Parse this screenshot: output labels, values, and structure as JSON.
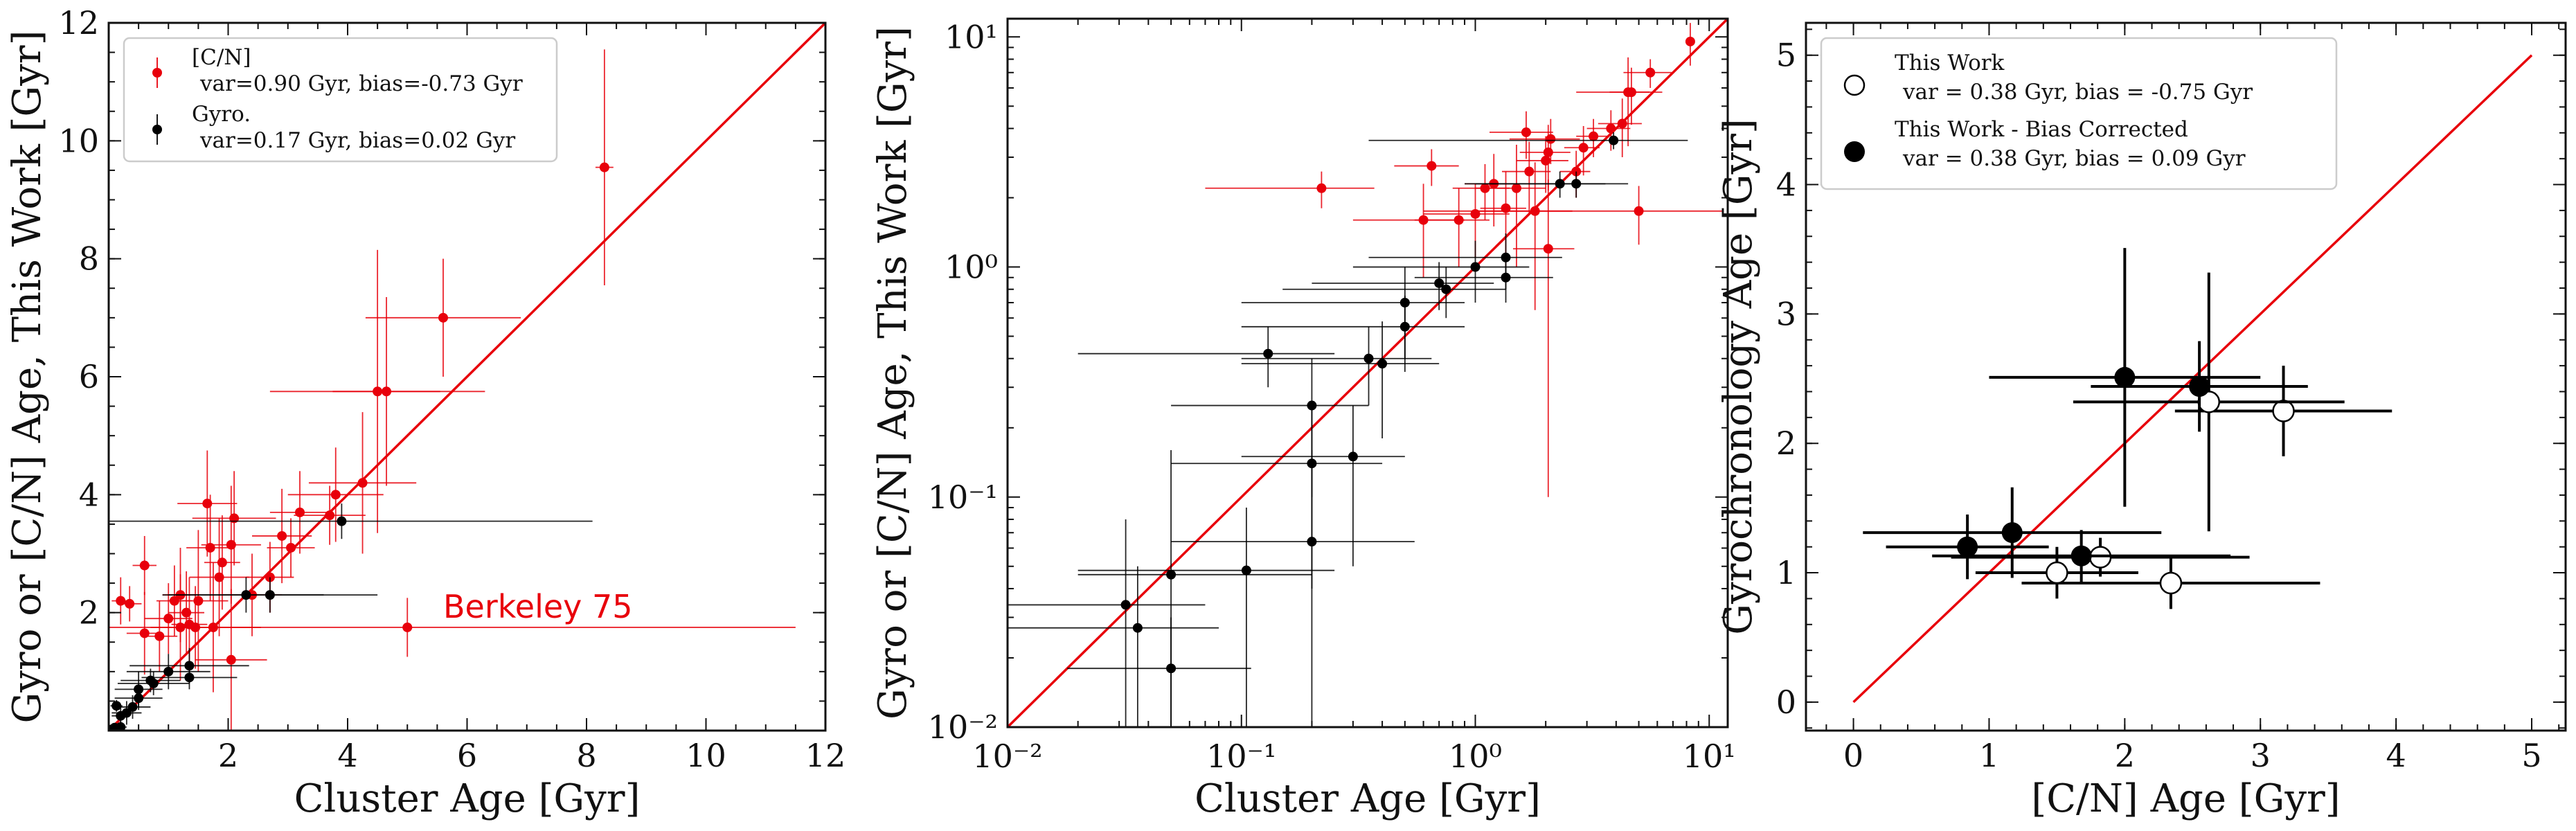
{
  "chart_data": [
    {
      "type": "scatter",
      "scale": "linear",
      "xlabel": "Cluster Age [Gyr]",
      "ylabel": "Gyro or [C/N] Age, This Work [Gyr]",
      "xlim": [
        0,
        12
      ],
      "ylim": [
        0,
        12
      ],
      "xticks": [
        "2",
        "4",
        "6",
        "8",
        "10",
        "12"
      ],
      "yticks": [
        "2",
        "4",
        "6",
        "8",
        "10",
        "12"
      ],
      "legend": {
        "position": "top-left",
        "entries": [
          {
            "label_line1": "[C/N]",
            "label_line2": "var=0.90 Gyr, bias=-0.73 Gyr"
          },
          {
            "label_line1": "Gyro.",
            "label_line2": "var=0.17 Gyr, bias=0.02 Gyr"
          }
        ]
      },
      "annotation": {
        "text": "Berkeley 75",
        "x": 5.6,
        "y": 2.1
      },
      "one_to_one_line": true,
      "series": [
        {
          "name": "[C/N]",
          "color": "#e8000b",
          "points": [
            {
              "x": 8.3,
              "y": 9.55,
              "xerr": 0.15,
              "yerr": 2.0
            },
            {
              "x": 5.6,
              "y": 7.0,
              "xerr": 1.3,
              "yerr": 1.0
            },
            {
              "x": 4.5,
              "y": 5.75,
              "xerr": 1.8,
              "yerr": 2.4
            },
            {
              "x": 4.65,
              "y": 5.75,
              "xerr": 0.9,
              "yerr": 1.6
            },
            {
              "x": 4.25,
              "y": 4.2,
              "xerr": 0.9,
              "yerr": 1.2
            },
            {
              "x": 3.8,
              "y": 4.0,
              "xerr": 0.8,
              "yerr": 0.8
            },
            {
              "x": 3.7,
              "y": 3.65,
              "xerr": 0.6,
              "yerr": 0.5
            },
            {
              "x": 3.2,
              "y": 3.7,
              "xerr": 0.5,
              "yerr": 0.7
            },
            {
              "x": 2.9,
              "y": 3.3,
              "xerr": 0.5,
              "yerr": 0.8
            },
            {
              "x": 3.05,
              "y": 3.1,
              "xerr": 0.4,
              "yerr": 0.5
            },
            {
              "x": 2.7,
              "y": 2.6,
              "xerr": 0.4,
              "yerr": 0.6
            },
            {
              "x": 2.4,
              "y": 2.3,
              "xerr": 0.5,
              "yerr": 0.7
            },
            {
              "x": 2.05,
              "y": 3.15,
              "xerr": 0.5,
              "yerr": 1.0
            },
            {
              "x": 2.1,
              "y": 3.6,
              "xerr": 0.7,
              "yerr": 0.8
            },
            {
              "x": 1.65,
              "y": 3.85,
              "xerr": 0.5,
              "yerr": 0.9
            },
            {
              "x": 1.7,
              "y": 3.1,
              "xerr": 0.4,
              "yerr": 0.9
            },
            {
              "x": 1.85,
              "y": 2.6,
              "xerr": 0.5,
              "yerr": 1.0
            },
            {
              "x": 1.9,
              "y": 2.85,
              "xerr": 0.3,
              "yerr": 0.8
            },
            {
              "x": 1.5,
              "y": 2.2,
              "xerr": 0.5,
              "yerr": 1.2
            },
            {
              "x": 1.3,
              "y": 2.0,
              "xerr": 0.3,
              "yerr": 0.7
            },
            {
              "x": 1.2,
              "y": 2.3,
              "xerr": 0.3,
              "yerr": 0.8
            },
            {
              "x": 1.1,
              "y": 2.2,
              "xerr": 0.3,
              "yerr": 0.6
            },
            {
              "x": 1.0,
              "y": 1.9,
              "xerr": 0.4,
              "yerr": 0.6
            },
            {
              "x": 1.35,
              "y": 1.8,
              "xerr": 0.3,
              "yerr": 0.8
            },
            {
              "x": 1.45,
              "y": 1.75,
              "xerr": 0.4,
              "yerr": 0.7
            },
            {
              "x": 1.2,
              "y": 1.75,
              "xerr": 0.5,
              "yerr": 0.9
            },
            {
              "x": 0.6,
              "y": 1.65,
              "xerr": 0.3,
              "yerr": 0.7
            },
            {
              "x": 0.85,
              "y": 1.6,
              "xerr": 0.3,
              "yerr": 0.6
            },
            {
              "x": 0.6,
              "y": 2.8,
              "xerr": 0.2,
              "yerr": 0.5
            },
            {
              "x": 0.2,
              "y": 2.2,
              "xerr": 0.15,
              "yerr": 0.4
            },
            {
              "x": 0.35,
              "y": 2.15,
              "xerr": 0.2,
              "yerr": 0.3
            },
            {
              "x": 1.75,
              "y": 1.75,
              "xerr": 0.8,
              "yerr": 1.1
            },
            {
              "x": 2.05,
              "y": 1.2,
              "xerr": 0.6,
              "yerr": 1.2
            },
            {
              "x": 5.0,
              "y": 1.75,
              "xerr": 6.5,
              "yerr": 0.5
            }
          ]
        },
        {
          "name": "Gyro.",
          "color": "#000000",
          "points": [
            {
              "x": 3.9,
              "y": 3.55,
              "xerr": 4.2,
              "yerr": 0.3
            },
            {
              "x": 2.7,
              "y": 2.3,
              "xerr": 1.8,
              "yerr": 0.3
            },
            {
              "x": 2.3,
              "y": 2.3,
              "xerr": 1.3,
              "yerr": 0.3
            },
            {
              "x": 1.35,
              "y": 1.1,
              "xerr": 1.0,
              "yerr": 0.3
            },
            {
              "x": 1.35,
              "y": 0.9,
              "xerr": 0.8,
              "yerr": 0.2
            },
            {
              "x": 1.0,
              "y": 1.0,
              "xerr": 0.7,
              "yerr": 0.3
            },
            {
              "x": 0.75,
              "y": 0.8,
              "xerr": 0.6,
              "yerr": 0.2
            },
            {
              "x": 0.7,
              "y": 0.85,
              "xerr": 0.5,
              "yerr": 0.2
            },
            {
              "x": 0.5,
              "y": 0.55,
              "xerr": 0.4,
              "yerr": 0.2
            },
            {
              "x": 0.5,
              "y": 0.7,
              "xerr": 0.4,
              "yerr": 0.3
            },
            {
              "x": 0.4,
              "y": 0.4,
              "xerr": 0.3,
              "yerr": 0.2
            },
            {
              "x": 0.3,
              "y": 0.3,
              "xerr": 0.25,
              "yerr": 0.2
            },
            {
              "x": 0.2,
              "y": 0.25,
              "xerr": 0.15,
              "yerr": 0.15
            },
            {
              "x": 0.2,
              "y": 0.06,
              "xerr": 0.1,
              "yerr": 0.1
            },
            {
              "x": 0.13,
              "y": 0.42,
              "xerr": 0.1,
              "yerr": 0.1
            },
            {
              "x": 0.1,
              "y": 0.05,
              "xerr": 0.06,
              "yerr": 0.05
            },
            {
              "x": 0.05,
              "y": 0.02,
              "xerr": 0.03,
              "yerr": 0.02
            }
          ]
        }
      ]
    },
    {
      "type": "scatter",
      "scale": "log",
      "xlabel": "Cluster Age [Gyr]",
      "ylabel": "Gyro or [C/N] Age, This Work [Gyr]",
      "xlim": [
        0.01,
        12
      ],
      "ylim": [
        0.01,
        12
      ],
      "xticks": [
        "10⁻²",
        "10⁻¹",
        "10⁰",
        "10¹"
      ],
      "yticks": [
        "10⁻²",
        "10⁻¹",
        "10⁰",
        "10¹"
      ],
      "one_to_one_line": true,
      "series": [
        {
          "name": "[C/N]",
          "color": "#e8000b",
          "points": [
            {
              "x": 8.3,
              "y": 9.55,
              "xlo": 8.0,
              "xhi": 8.6,
              "ylo": 7.5,
              "yhi": 11.5
            },
            {
              "x": 5.6,
              "y": 7.0,
              "xlo": 4.3,
              "xhi": 6.9,
              "ylo": 6.0,
              "yhi": 8.0
            },
            {
              "x": 4.5,
              "y": 5.75,
              "xlo": 2.7,
              "xhi": 6.3,
              "ylo": 3.35,
              "yhi": 8.15
            },
            {
              "x": 4.65,
              "y": 5.75,
              "xlo": 3.75,
              "xhi": 5.55,
              "ylo": 4.15,
              "yhi": 7.35
            },
            {
              "x": 4.25,
              "y": 4.2,
              "xlo": 3.35,
              "xhi": 5.15,
              "ylo": 3.0,
              "yhi": 5.4
            },
            {
              "x": 3.8,
              "y": 4.0,
              "xlo": 3.0,
              "xhi": 4.6,
              "ylo": 3.2,
              "yhi": 4.8
            },
            {
              "x": 3.2,
              "y": 3.7,
              "xlo": 2.7,
              "xhi": 3.7,
              "ylo": 3.0,
              "yhi": 4.4
            },
            {
              "x": 2.9,
              "y": 3.3,
              "xlo": 2.4,
              "xhi": 3.4,
              "ylo": 2.5,
              "yhi": 4.1
            },
            {
              "x": 2.7,
              "y": 2.6,
              "xlo": 2.3,
              "xhi": 3.1,
              "ylo": 2.0,
              "yhi": 3.2
            },
            {
              "x": 2.1,
              "y": 3.6,
              "xlo": 1.4,
              "xhi": 2.8,
              "ylo": 2.8,
              "yhi": 4.4
            },
            {
              "x": 1.65,
              "y": 3.85,
              "xlo": 1.15,
              "xhi": 2.15,
              "ylo": 2.95,
              "yhi": 4.75
            },
            {
              "x": 2.05,
              "y": 3.15,
              "xlo": 1.55,
              "xhi": 2.55,
              "ylo": 2.15,
              "yhi": 4.15
            },
            {
              "x": 2.0,
              "y": 2.9,
              "xlo": 1.5,
              "xhi": 2.5,
              "ylo": 2.1,
              "yhi": 3.7
            },
            {
              "x": 1.7,
              "y": 2.6,
              "xlo": 1.3,
              "xhi": 2.1,
              "ylo": 1.7,
              "yhi": 3.5
            },
            {
              "x": 1.5,
              "y": 2.2,
              "xlo": 1.0,
              "xhi": 2.0,
              "ylo": 1.0,
              "yhi": 3.4
            },
            {
              "x": 1.2,
              "y": 2.3,
              "xlo": 0.9,
              "xhi": 1.5,
              "ylo": 1.5,
              "yhi": 3.1
            },
            {
              "x": 1.1,
              "y": 2.2,
              "xlo": 0.8,
              "xhi": 1.4,
              "ylo": 1.6,
              "yhi": 2.8
            },
            {
              "x": 1.0,
              "y": 1.7,
              "xlo": 0.6,
              "xhi": 1.4,
              "ylo": 1.1,
              "yhi": 2.3
            },
            {
              "x": 1.35,
              "y": 1.8,
              "xlo": 1.05,
              "xhi": 1.65,
              "ylo": 1.0,
              "yhi": 2.6
            },
            {
              "x": 1.8,
              "y": 1.75,
              "xlo": 1.0,
              "xhi": 2.6,
              "ylo": 0.65,
              "yhi": 2.85
            },
            {
              "x": 2.05,
              "y": 1.2,
              "xlo": 1.45,
              "xhi": 2.65,
              "ylo": 0.1,
              "yhi": 2.4
            },
            {
              "x": 0.85,
              "y": 1.6,
              "xlo": 0.55,
              "xhi": 1.15,
              "ylo": 1.0,
              "yhi": 2.2
            },
            {
              "x": 0.6,
              "y": 1.6,
              "xlo": 0.3,
              "xhi": 0.9,
              "ylo": 0.9,
              "yhi": 2.3
            },
            {
              "x": 0.65,
              "y": 2.75,
              "xlo": 0.45,
              "xhi": 0.85,
              "ylo": 2.25,
              "yhi": 3.25
            },
            {
              "x": 0.22,
              "y": 2.2,
              "xlo": 0.07,
              "xhi": 0.37,
              "ylo": 1.8,
              "yhi": 2.6
            },
            {
              "x": 5.0,
              "y": 1.75,
              "xlo": 0.6,
              "xhi": 11.5,
              "ylo": 1.25,
              "yhi": 2.25
            }
          ]
        },
        {
          "name": "Gyro.",
          "color": "#000000",
          "points": [
            {
              "x": 3.9,
              "y": 3.55,
              "xlo": 0.35,
              "xhi": 8.1,
              "ylo": 3.25,
              "yhi": 3.85
            },
            {
              "x": 2.7,
              "y": 2.3,
              "xlo": 0.9,
              "xhi": 4.5,
              "ylo": 2.0,
              "yhi": 2.6
            },
            {
              "x": 2.3,
              "y": 2.3,
              "xlo": 1.0,
              "xhi": 3.6,
              "ylo": 2.0,
              "yhi": 2.6
            },
            {
              "x": 1.35,
              "y": 1.1,
              "xlo": 0.35,
              "xhi": 2.35,
              "ylo": 0.8,
              "yhi": 1.4
            },
            {
              "x": 1.35,
              "y": 0.9,
              "xlo": 0.55,
              "xhi": 2.15,
              "ylo": 0.7,
              "yhi": 1.1
            },
            {
              "x": 1.0,
              "y": 1.0,
              "xlo": 0.3,
              "xhi": 1.7,
              "ylo": 0.7,
              "yhi": 1.3
            },
            {
              "x": 0.75,
              "y": 0.8,
              "xlo": 0.15,
              "xhi": 1.35,
              "ylo": 0.6,
              "yhi": 1.0
            },
            {
              "x": 0.7,
              "y": 0.85,
              "xlo": 0.2,
              "xhi": 1.2,
              "ylo": 0.65,
              "yhi": 1.05
            },
            {
              "x": 0.5,
              "y": 0.55,
              "xlo": 0.1,
              "xhi": 0.9,
              "ylo": 0.35,
              "yhi": 0.75
            },
            {
              "x": 0.5,
              "y": 0.7,
              "xlo": 0.1,
              "xhi": 0.9,
              "ylo": 0.4,
              "yhi": 1.0
            },
            {
              "x": 0.4,
              "y": 0.38,
              "xlo": 0.1,
              "xhi": 0.7,
              "ylo": 0.18,
              "yhi": 0.58
            },
            {
              "x": 0.35,
              "y": 0.4,
              "xlo": 0.1,
              "xhi": 0.65,
              "ylo": 0.25,
              "yhi": 0.55
            },
            {
              "x": 0.3,
              "y": 0.15,
              "xlo": 0.1,
              "xhi": 0.5,
              "ylo": 0.05,
              "yhi": 0.25
            },
            {
              "x": 0.2,
              "y": 0.25,
              "xlo": 0.05,
              "xhi": 0.35,
              "ylo": 0.1,
              "yhi": 0.4
            },
            {
              "x": 0.2,
              "y": 0.14,
              "xlo": 0.05,
              "xhi": 0.4,
              "ylo": 0.04,
              "yhi": 0.24
            },
            {
              "x": 0.2,
              "y": 0.064,
              "xlo": 0.05,
              "xhi": 0.55,
              "ylo": 0.01,
              "yhi": 0.16
            },
            {
              "x": 0.13,
              "y": 0.42,
              "xlo": 0.02,
              "xhi": 0.25,
              "ylo": 0.3,
              "yhi": 0.55
            },
            {
              "x": 0.105,
              "y": 0.048,
              "xlo": 0.02,
              "xhi": 0.25,
              "ylo": 0.01,
              "yhi": 0.09
            },
            {
              "x": 0.05,
              "y": 0.046,
              "xlo": 0.02,
              "xhi": 0.2,
              "ylo": 0.01,
              "yhi": 0.16
            },
            {
              "x": 0.032,
              "y": 0.034,
              "xlo": 0.01,
              "xhi": 0.07,
              "ylo": 0.01,
              "yhi": 0.08
            },
            {
              "x": 0.036,
              "y": 0.027,
              "xlo": 0.01,
              "xhi": 0.08,
              "ylo": 0.01,
              "yhi": 0.05
            },
            {
              "x": 0.05,
              "y": 0.018,
              "xlo": 0.018,
              "xhi": 0.11,
              "ylo": 0.01,
              "yhi": 0.03
            }
          ]
        }
      ]
    },
    {
      "type": "scatter",
      "scale": "linear",
      "xlabel": "[C/N] Age [Gyr]",
      "ylabel": "Gyrochronology Age [Gyr]",
      "xlim": [
        -0.35,
        5.25
      ],
      "ylim": [
        -0.22,
        5.25
      ],
      "xticks": [
        "0",
        "1",
        "2",
        "3",
        "4",
        "5"
      ],
      "yticks": [
        "0",
        "1",
        "2",
        "3",
        "4",
        "5"
      ],
      "legend": {
        "position": "top-left",
        "entries": [
          {
            "label_line1": "This Work",
            "label_line2": "var = 0.38 Gyr, bias = -0.75 Gyr"
          },
          {
            "label_line1": "This Work - Bias Corrected",
            "label_line2": "var = 0.38 Gyr, bias = 0.09 Gyr"
          }
        ]
      },
      "one_to_one_line": true,
      "series": [
        {
          "name": "This Work",
          "marker": "open-circle",
          "color": "#000000",
          "points": [
            {
              "x": 3.17,
              "y": 2.25,
              "xerr": 0.8,
              "yerr": 0.35
            },
            {
              "x": 2.62,
              "y": 2.32,
              "xerr": 1.0,
              "yerr": 1.0
            },
            {
              "x": 2.34,
              "y": 0.92,
              "xerr": 1.1,
              "yerr": 0.2
            },
            {
              "x": 1.82,
              "y": 1.12,
              "xerr": 1.1,
              "yerr": 0.15
            },
            {
              "x": 1.5,
              "y": 1.0,
              "xerr": 0.6,
              "yerr": 0.2
            }
          ]
        },
        {
          "name": "This Work - Bias Corrected",
          "marker": "filled-circle",
          "color": "#000000",
          "points": [
            {
              "x": 2.55,
              "y": 2.44,
              "xerr": 0.8,
              "yerr": 0.35
            },
            {
              "x": 2.0,
              "y": 2.51,
              "xerr": 1.0,
              "yerr": 1.0
            },
            {
              "x": 1.68,
              "y": 1.13,
              "xerr": 1.1,
              "yerr": 0.2
            },
            {
              "x": 1.17,
              "y": 1.31,
              "xerr": 1.1,
              "yerr": 0.35
            },
            {
              "x": 0.84,
              "y": 1.2,
              "xerr": 0.6,
              "yerr": 0.25
            }
          ]
        }
      ]
    }
  ]
}
